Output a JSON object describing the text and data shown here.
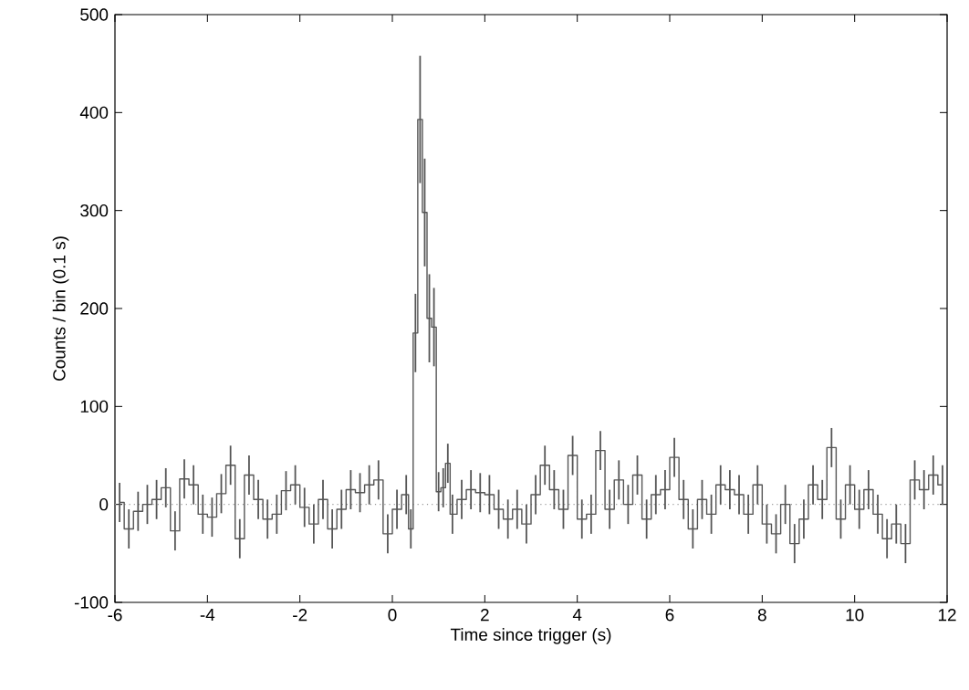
{
  "chart_data": {
    "type": "step",
    "xlabel": "Time since trigger (s)",
    "ylabel": "Counts / bin (0.1 s)",
    "xlim": [
      -6,
      12
    ],
    "xticks": [
      -6,
      -4,
      -2,
      0,
      2,
      4,
      6,
      8,
      10,
      12
    ],
    "ylim": [
      -100,
      500
    ],
    "yticks": [
      -100,
      0,
      100,
      200,
      300,
      400,
      500
    ],
    "grid": false,
    "marker": "none",
    "line_style": "solid",
    "ref_lines": [
      {
        "axis": "y",
        "value": 0,
        "color": "#999999",
        "line_style": "dotted"
      }
    ],
    "series": [
      {
        "color": "#555555",
        "x": [
          -5.9,
          -5.7,
          -5.5,
          -5.3,
          -5.1,
          -4.9,
          -4.7,
          -4.5,
          -4.3,
          -4.1,
          -3.9,
          -3.7,
          -3.5,
          -3.3,
          -3.1,
          -2.9,
          -2.7,
          -2.5,
          -2.3,
          -2.1,
          -1.9,
          -1.7,
          -1.5,
          -1.3,
          -1.1,
          -0.9,
          -0.7,
          -0.5,
          -0.3,
          -0.1,
          0.1,
          0.3,
          0.4,
          0.5,
          0.6,
          0.7,
          0.8,
          0.9,
          1.0,
          1.1,
          1.2,
          1.3,
          1.5,
          1.7,
          1.9,
          2.1,
          2.3,
          2.5,
          2.7,
          2.9,
          3.1,
          3.3,
          3.5,
          3.7,
          3.9,
          4.1,
          4.3,
          4.5,
          4.7,
          4.9,
          5.1,
          5.3,
          5.5,
          5.7,
          5.9,
          6.1,
          6.3,
          6.5,
          6.7,
          6.9,
          7.1,
          7.3,
          7.5,
          7.7,
          7.9,
          8.1,
          8.3,
          8.5,
          8.7,
          8.9,
          9.1,
          9.3,
          9.5,
          9.7,
          9.9,
          10.1,
          10.3,
          10.5,
          10.7,
          10.9,
          11.1,
          11.3,
          11.5,
          11.7,
          11.9
        ],
        "values": [
          2,
          -25,
          -7,
          0,
          5,
          17,
          -27,
          26,
          20,
          -10,
          -13,
          11,
          40,
          -35,
          30,
          5,
          -15,
          -10,
          14,
          20,
          -3,
          -20,
          5,
          -25,
          -5,
          15,
          12,
          20,
          25,
          -30,
          -5,
          10,
          -25,
          175,
          393,
          298,
          190,
          181,
          13,
          17,
          42,
          -10,
          5,
          15,
          12,
          10,
          -5,
          -15,
          -5,
          -20,
          10,
          40,
          15,
          -5,
          50,
          -15,
          -10,
          55,
          -5,
          25,
          0,
          30,
          -15,
          10,
          15,
          48,
          5,
          -25,
          5,
          -10,
          20,
          15,
          10,
          -10,
          20,
          -20,
          -30,
          0,
          -40,
          -15,
          20,
          5,
          58,
          -15,
          20,
          -5,
          15,
          -10,
          -35,
          -20,
          -40,
          25,
          15,
          30,
          20
        ],
        "errors": [
          20,
          20,
          20,
          20,
          20,
          20,
          20,
          20,
          20,
          20,
          20,
          20,
          20,
          20,
          20,
          20,
          20,
          20,
          20,
          20,
          20,
          20,
          20,
          20,
          20,
          20,
          20,
          20,
          20,
          20,
          20,
          20,
          20,
          40,
          65,
          55,
          45,
          40,
          20,
          20,
          20,
          20,
          20,
          20,
          20,
          20,
          20,
          20,
          20,
          20,
          20,
          20,
          20,
          20,
          20,
          20,
          20,
          20,
          20,
          20,
          20,
          20,
          20,
          20,
          20,
          20,
          20,
          20,
          20,
          20,
          20,
          20,
          20,
          20,
          20,
          20,
          20,
          20,
          20,
          20,
          20,
          20,
          20,
          20,
          20,
          20,
          20,
          20,
          20,
          20,
          20,
          20,
          20,
          20,
          20
        ]
      }
    ]
  }
}
